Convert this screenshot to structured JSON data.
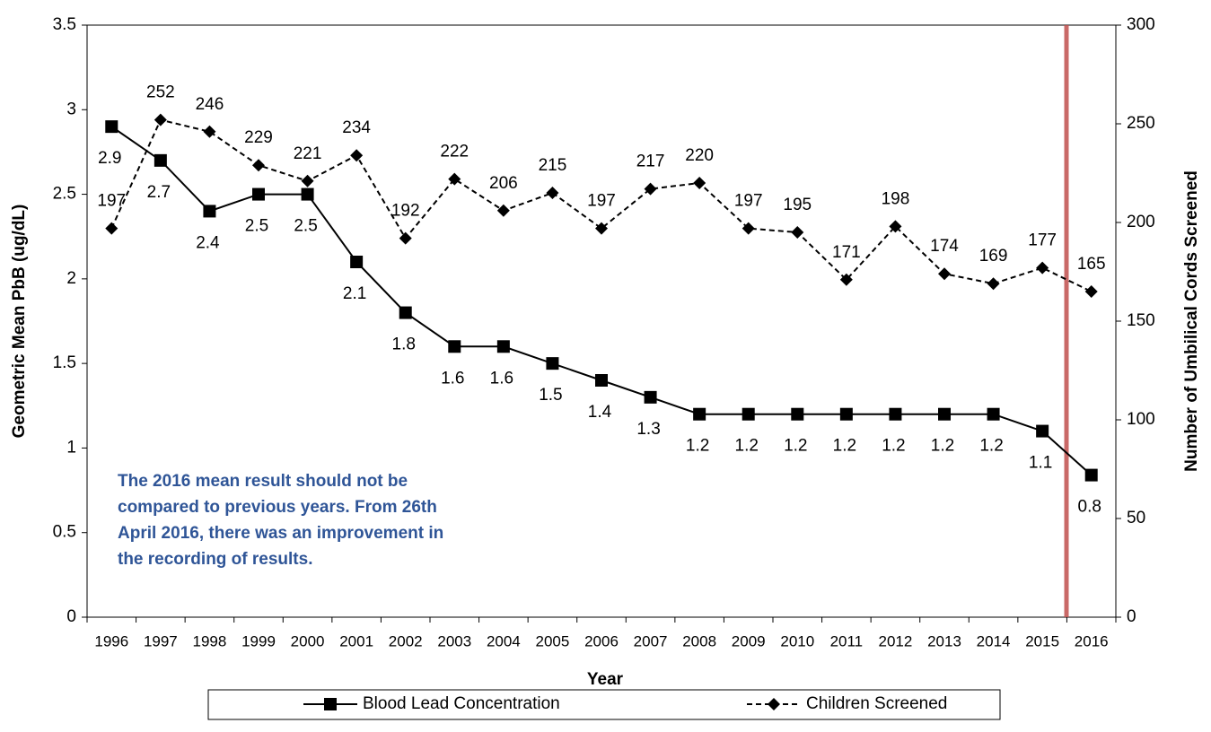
{
  "chart_data": {
    "type": "line",
    "x_label": "Year",
    "y_label": "Geometric Mean PbB (ug/dL)",
    "y2_label": "Number of Umbilical Cords Screened",
    "categories": [
      "1996",
      "1997",
      "1998",
      "1999",
      "2000",
      "2001",
      "2002",
      "2003",
      "2004",
      "2005",
      "2006",
      "2007",
      "2008",
      "2009",
      "2010",
      "2011",
      "2012",
      "2013",
      "2014",
      "2015",
      "2016"
    ],
    "series": [
      {
        "name": "Blood Lead Concentration",
        "color": "#000000",
        "dash": false,
        "marker": "square",
        "values": [
          2.9,
          2.7,
          2.4,
          2.5,
          2.5,
          2.1,
          1.8,
          1.6,
          1.6,
          1.5,
          1.4,
          1.3,
          1.2,
          1.2,
          1.2,
          1.2,
          1.2,
          1.2,
          1.2,
          1.1,
          0.84
        ],
        "value_labels": [
          "2.9",
          "2.7",
          "2.4",
          "2.5",
          "2.5",
          "2.1",
          "1.8",
          "1.6",
          "1.6",
          "1.5",
          "1.4",
          "1.3",
          "1.2",
          "1.2",
          "1.2",
          "1.2",
          "1.2",
          "1.2",
          "1.2",
          "1.1",
          "0.8"
        ]
      },
      {
        "name": "Children Screened",
        "color": "#000000",
        "dash": true,
        "marker": "diamond",
        "axis": "y2",
        "values": [
          197,
          252,
          246,
          229,
          221,
          234,
          192,
          222,
          206,
          215,
          197,
          217,
          220,
          197,
          195,
          171,
          198,
          174,
          169,
          177,
          165
        ]
      }
    ],
    "ylim": [
      0,
      3.5
    ],
    "yticks": [
      0,
      0.5,
      1,
      1.5,
      2,
      2.5,
      3,
      3.5
    ],
    "y2lim": [
      0,
      300
    ],
    "y2ticks": [
      0,
      50,
      100,
      150,
      200,
      250,
      300
    ],
    "annotation": [
      "The 2016 mean result should not be",
      "compared to previous years.  From 26th",
      "April 2016, there was an improvement in",
      "the recording of results."
    ],
    "annotation_color": "#2f5597",
    "legend": "bottom"
  }
}
